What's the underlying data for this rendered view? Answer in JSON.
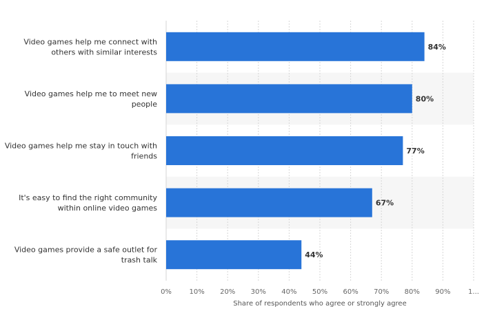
{
  "chart_data": {
    "type": "bar",
    "orientation": "horizontal",
    "categories": [
      [
        "Video games help me connect with",
        "others with similar interests"
      ],
      [
        "Video games help me to meet new",
        "people"
      ],
      [
        "Video games help me stay in touch with",
        "friends"
      ],
      [
        "It's easy to find the right community",
        "within online video games"
      ],
      [
        "Video games provide a safe outlet for",
        "trash talk"
      ]
    ],
    "values": [
      84,
      80,
      77,
      67,
      44
    ],
    "value_labels": [
      "84%",
      "80%",
      "77%",
      "67%",
      "44%"
    ],
    "xlabel": "Share of respondents who agree or strongly agree",
    "xlim": [
      0,
      100
    ],
    "x_ticks": [
      "0%",
      "10%",
      "20%",
      "30%",
      "40%",
      "50%",
      "60%",
      "70%",
      "80%",
      "90%",
      "1..."
    ],
    "grid": true,
    "colors": {
      "bar": "#2874d8",
      "grid": "#d6d6d6",
      "band": "#f6f6f6"
    }
  }
}
